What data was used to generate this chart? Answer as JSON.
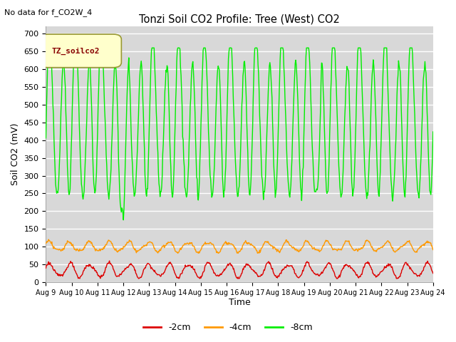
{
  "title": "Tonzi Soil CO2 Profile: Tree (West) CO2",
  "subtitle": "No data for f_CO2W_4",
  "ylabel": "Soil CO2 (mV)",
  "xlabel": "Time",
  "ylim": [
    0,
    720
  ],
  "yticks": [
    0,
    50,
    100,
    150,
    200,
    250,
    300,
    350,
    400,
    450,
    500,
    550,
    600,
    650,
    700
  ],
  "background_color": "#d8d8d8",
  "legend_label": "TZ_soilco2",
  "legend_box_color": "#ffffcc",
  "legend_box_border": "#cc9900",
  "line_colors": {
    "2cm": "#dd0000",
    "4cm": "#ff9900",
    "8cm": "#00ee00"
  },
  "legend_labels": [
    "-2cm",
    "-4cm",
    "-8cm"
  ],
  "n_days": 15,
  "start_day": 9
}
